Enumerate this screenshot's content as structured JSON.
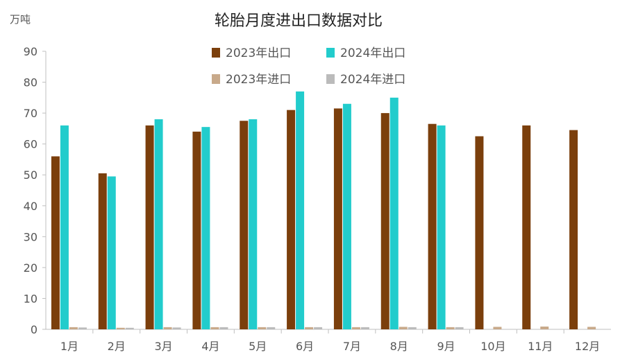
{
  "chart_data": {
    "type": "bar",
    "title": "轮胎月度进出口数据对比",
    "ylabel": "万吨",
    "xlabel": "",
    "ylim": [
      0,
      90
    ],
    "yticks": [
      0,
      10,
      20,
      30,
      40,
      50,
      60,
      70,
      80,
      90
    ],
    "grid": false,
    "legend_position": "top",
    "categories": [
      "1月",
      "2月",
      "3月",
      "4月",
      "5月",
      "6月",
      "7月",
      "8月",
      "9月",
      "10月",
      "11月",
      "12月"
    ],
    "series": [
      {
        "name": "2023年出口",
        "color": "#7B3F0C",
        "values": [
          56,
          50.5,
          66,
          64,
          67.5,
          71,
          71.5,
          70,
          66.5,
          62.5,
          66,
          64.5
        ]
      },
      {
        "name": "2024年出口",
        "color": "#22CCCC",
        "values": [
          66,
          49.5,
          68,
          65.5,
          68,
          77,
          73,
          75,
          66,
          null,
          null,
          null
        ]
      },
      {
        "name": "2023年进口",
        "color": "#C8A98A",
        "values": [
          0.7,
          0.5,
          0.7,
          0.7,
          0.7,
          0.7,
          0.7,
          0.8,
          0.7,
          0.8,
          0.9,
          0.8
        ]
      },
      {
        "name": "2024年进口",
        "color": "#BBBBBB",
        "values": [
          0.6,
          0.5,
          0.6,
          0.7,
          0.7,
          0.7,
          0.7,
          0.7,
          0.7,
          null,
          null,
          null
        ]
      }
    ]
  }
}
